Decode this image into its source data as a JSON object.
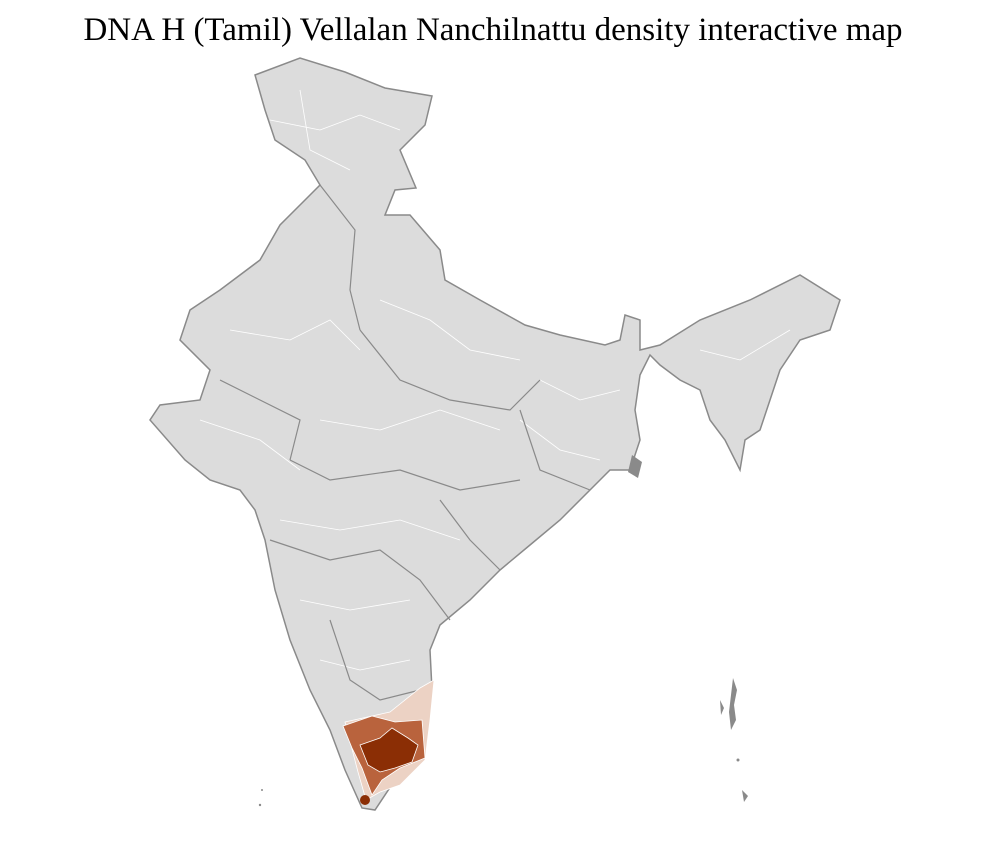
{
  "title": "DNA H (Tamil) Vellalan Nanchilnattu density interactive map",
  "colors": {
    "base_fill": "#dcdcdc",
    "border": "#8a8a8a",
    "district_border": "#ffffff",
    "density_low": "#ecd2c4",
    "density_medium": "#b9633d",
    "density_high": "#8b2e05"
  }
}
